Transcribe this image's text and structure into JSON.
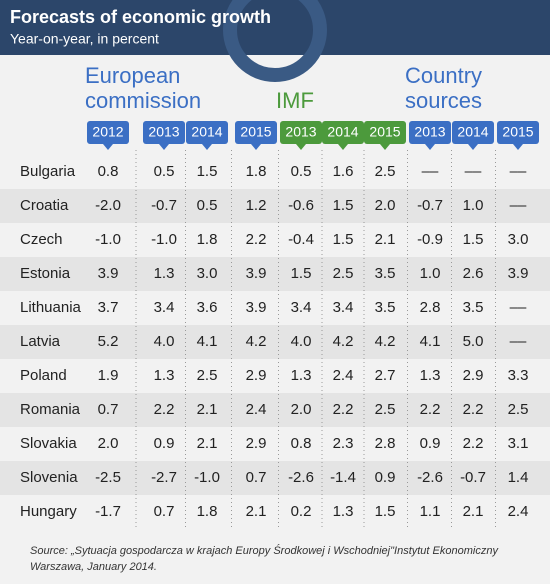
{
  "header": {
    "title": "Forecasts of economic growth",
    "subtitle": "Year-on-year, in percent"
  },
  "groups": [
    {
      "lines": [
        "European",
        "commission"
      ],
      "years": [
        "2012",
        "2013",
        "2014",
        "2015"
      ]
    },
    {
      "lines": [
        "IMF"
      ],
      "years": [
        "2013",
        "2014",
        "2015"
      ]
    },
    {
      "lines": [
        "Country",
        "sources"
      ],
      "years": [
        "2013",
        "2014",
        "2015"
      ]
    }
  ],
  "table": {
    "rows": [
      [
        "Bulgaria",
        "0.8",
        "0.5",
        "1.5",
        "1.8",
        "0.5",
        "1.6",
        "2.5",
        "––",
        "––",
        "––"
      ],
      [
        "Croatia",
        "-2.0",
        "-0.7",
        "0.5",
        "1.2",
        "-0.6",
        "1.5",
        "2.0",
        "-0.7",
        "1.0",
        "––"
      ],
      [
        "Czech",
        "-1.0",
        "-1.0",
        "1.8",
        "2.2",
        "-0.4",
        "1.5",
        "2.1",
        "-0.9",
        "1.5",
        "3.0"
      ],
      [
        "Estonia",
        "3.9",
        "1.3",
        "3.0",
        "3.9",
        "1.5",
        "2.5",
        "3.5",
        "1.0",
        "2.6",
        "3.9"
      ],
      [
        "Lithuania",
        "3.7",
        "3.4",
        "3.6",
        "3.9",
        "3.4",
        "3.4",
        "3.5",
        "2.8",
        "3.5",
        "––"
      ],
      [
        "Latvia",
        "5.2",
        "4.0",
        "4.1",
        "4.2",
        "4.0",
        "4.2",
        "4.2",
        "4.1",
        "5.0",
        "––"
      ],
      [
        "Poland",
        "1.9",
        "1.3",
        "2.5",
        "2.9",
        "1.3",
        "2.4",
        "2.7",
        "1.3",
        "2.9",
        "3.3"
      ],
      [
        "Romania",
        "0.7",
        "2.2",
        "2.1",
        "2.4",
        "2.0",
        "2.2",
        "2.5",
        "2.2",
        "2.2",
        "2.5"
      ],
      [
        "Slovakia",
        "2.0",
        "0.9",
        "2.1",
        "2.9",
        "0.8",
        "2.3",
        "2.8",
        "0.9",
        "2.2",
        "3.1"
      ],
      [
        "Slovenia",
        "-2.5",
        "-2.7",
        "-1.0",
        "0.7",
        "-2.6",
        "-1.4",
        "0.9",
        "-2.6",
        "-0.7",
        "1.4"
      ],
      [
        "Hungary",
        "-1.7",
        "0.7",
        "1.8",
        "2.1",
        "0.2",
        "1.3",
        "1.5",
        "1.1",
        "2.1",
        "2.4"
      ]
    ]
  },
  "footer": {
    "source": [
      "Source: „Sytuacja gospodarcza w krajach Europy Środkowej i Wschodniej\"Instytut Ekonomiczny",
      "Warszawa, January 2014."
    ]
  }
}
